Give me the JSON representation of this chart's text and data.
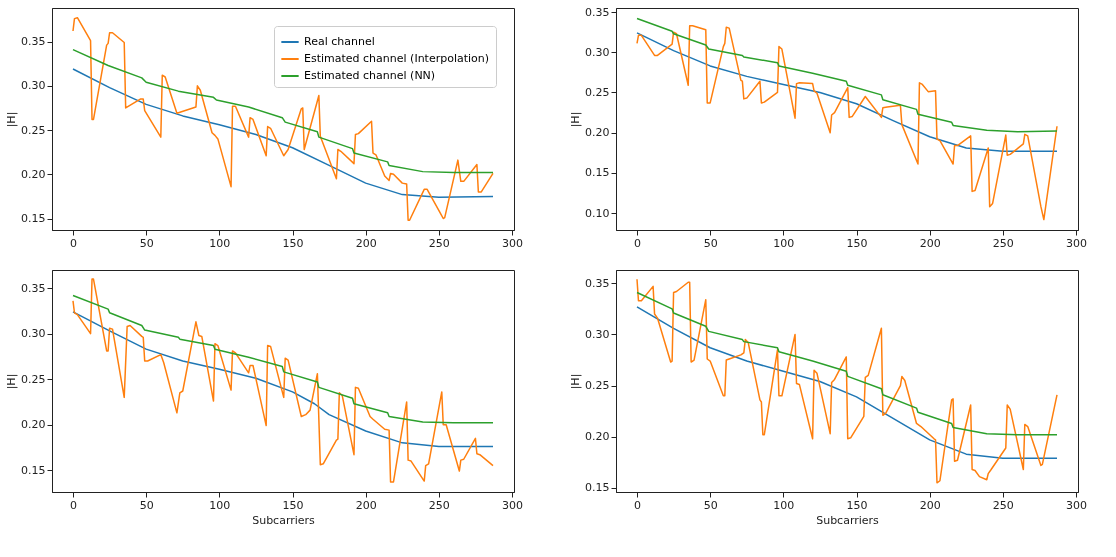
{
  "chart_data": [
    {
      "type": "line",
      "ylabel": "|H|",
      "legend": "top right",
      "grid": false,
      "xlim": [
        -14.35,
        301.35
      ],
      "xticks": [
        0,
        50,
        100,
        150,
        200,
        250,
        300
      ],
      "ylim": [
        0.137,
        0.388
      ],
      "yticks": [
        {
          "value": 0.15,
          "label": "0.15"
        },
        {
          "value": 0.2,
          "label": "0.20"
        },
        {
          "value": 0.25,
          "label": "0.25"
        },
        {
          "value": 0.3,
          "label": "0.30"
        },
        {
          "value": 0.35,
          "label": "0.35"
        }
      ],
      "series": [
        {
          "name": "Real channel",
          "color": "#1f77b4",
          "x": [
            0,
            25,
            50,
            75,
            100,
            125,
            150,
            175,
            200,
            225,
            250,
            287
          ],
          "values": [
            0.319,
            0.298,
            0.279,
            0.266,
            0.256,
            0.245,
            0.23,
            0.21,
            0.19,
            0.177,
            0.174,
            0.175
          ]
        },
        {
          "name": "Estimated channel (Interpolation)",
          "color": "#ff7f0e",
          "x": [
            0,
            1,
            3,
            12,
            13,
            14,
            23,
            24,
            25,
            27,
            35,
            36,
            46,
            48,
            49,
            60,
            61,
            63,
            71,
            84,
            85,
            87,
            95,
            97,
            99,
            108,
            109,
            111,
            120,
            121,
            123,
            132,
            133,
            135,
            144,
            147,
            156,
            157,
            158,
            168,
            169,
            180,
            181,
            183,
            192,
            193,
            195,
            204,
            205,
            207,
            213,
            216,
            217,
            219,
            225,
            228,
            229,
            230,
            240,
            242,
            251,
            253,
            254,
            263,
            265,
            267,
            276,
            277,
            279,
            287
          ],
          "values": [
            0.362,
            0.376,
            0.377,
            0.351,
            0.262,
            0.262,
            0.346,
            0.348,
            0.36,
            0.36,
            0.349,
            0.275,
            0.285,
            0.285,
            0.272,
            0.242,
            0.312,
            0.31,
            0.269,
            0.276,
            0.3,
            0.295,
            0.247,
            0.244,
            0.24,
            0.186,
            0.277,
            0.277,
            0.242,
            0.264,
            0.262,
            0.221,
            0.254,
            0.252,
            0.221,
            0.228,
            0.274,
            0.275,
            0.228,
            0.289,
            0.243,
            0.195,
            0.228,
            0.226,
            0.212,
            0.245,
            0.246,
            0.26,
            0.224,
            0.222,
            0.198,
            0.193,
            0.201,
            0.2,
            0.19,
            0.189,
            0.148,
            0.148,
            0.183,
            0.183,
            0.156,
            0.15,
            0.151,
            0.216,
            0.192,
            0.192,
            0.211,
            0.18,
            0.18,
            0.201
          ]
        },
        {
          "name": "Estimated channel (NN)",
          "color": "#2ca02c",
          "x": [
            0,
            24,
            47,
            50,
            72,
            96,
            98,
            120,
            143,
            145,
            167,
            168,
            191,
            192,
            215,
            216,
            239,
            260,
            287
          ],
          "values": [
            0.341,
            0.323,
            0.309,
            0.304,
            0.294,
            0.287,
            0.284,
            0.276,
            0.264,
            0.259,
            0.248,
            0.242,
            0.229,
            0.224,
            0.214,
            0.21,
            0.203,
            0.202,
            0.202
          ]
        }
      ]
    },
    {
      "type": "line",
      "ylabel": "|H|",
      "legend": false,
      "grid": false,
      "xlim": [
        -14.35,
        301.35
      ],
      "xticks": [
        0,
        50,
        100,
        150,
        200,
        250,
        300
      ],
      "ylim": [
        0.079,
        0.355
      ],
      "yticks": [
        {
          "value": 0.1,
          "label": "0.10"
        },
        {
          "value": 0.15,
          "label": "0.15"
        },
        {
          "value": 0.2,
          "label": "0.20"
        },
        {
          "value": 0.25,
          "label": "0.25"
        },
        {
          "value": 0.3,
          "label": "0.30"
        },
        {
          "value": 0.35,
          "label": "0.35"
        }
      ],
      "series": [
        {
          "color": "#1f77b4",
          "x": [
            0,
            25,
            50,
            75,
            100,
            125,
            150,
            175,
            200,
            225,
            250,
            287
          ],
          "values": [
            0.324,
            0.302,
            0.283,
            0.27,
            0.26,
            0.25,
            0.236,
            0.215,
            0.195,
            0.181,
            0.177,
            0.177
          ]
        },
        {
          "color": "#ff7f0e",
          "x": [
            0,
            1,
            3,
            12,
            14,
            24,
            25,
            27,
            35,
            36,
            38,
            47,
            48,
            50,
            59,
            60,
            61,
            63,
            71,
            72,
            73,
            75,
            84,
            85,
            87,
            96,
            97,
            99,
            108,
            109,
            111,
            120,
            121,
            123,
            132,
            133,
            135,
            144,
            145,
            147,
            156,
            167,
            168,
            171,
            180,
            181,
            192,
            193,
            195,
            199,
            204,
            205,
            207,
            216,
            217,
            219,
            228,
            229,
            231,
            240,
            241,
            243,
            252,
            253,
            255,
            264,
            265,
            267,
            276,
            278,
            287
          ],
          "values": [
            0.311,
            0.321,
            0.321,
            0.296,
            0.296,
            0.31,
            0.325,
            0.323,
            0.259,
            0.333,
            0.333,
            0.328,
            0.237,
            0.237,
            0.307,
            0.311,
            0.331,
            0.33,
            0.265,
            0.264,
            0.242,
            0.243,
            0.264,
            0.237,
            0.238,
            0.25,
            0.307,
            0.304,
            0.218,
            0.261,
            0.262,
            0.261,
            0.252,
            0.249,
            0.2,
            0.222,
            0.225,
            0.256,
            0.219,
            0.22,
            0.245,
            0.219,
            0.231,
            0.232,
            0.234,
            0.21,
            0.161,
            0.262,
            0.26,
            0.251,
            0.252,
            0.192,
            0.19,
            0.161,
            0.184,
            0.184,
            0.196,
            0.127,
            0.128,
            0.181,
            0.108,
            0.112,
            0.197,
            0.172,
            0.173,
            0.186,
            0.198,
            0.196,
            0.108,
            0.092,
            0.208
          ]
        },
        {
          "color": "#2ca02c",
          "x": [
            0,
            24,
            25,
            47,
            49,
            72,
            73,
            96,
            97,
            120,
            143,
            144,
            167,
            168,
            191,
            192,
            215,
            216,
            239,
            260,
            287
          ],
          "values": [
            0.342,
            0.326,
            0.323,
            0.309,
            0.304,
            0.296,
            0.294,
            0.287,
            0.283,
            0.274,
            0.264,
            0.259,
            0.247,
            0.241,
            0.229,
            0.223,
            0.213,
            0.209,
            0.203,
            0.201,
            0.202
          ]
        }
      ]
    },
    {
      "type": "line",
      "xlabel": "Subcarriers",
      "ylabel": "|H|",
      "legend": false,
      "grid": false,
      "xlim": [
        -14.35,
        301.35
      ],
      "xticks": [
        0,
        50,
        100,
        150,
        200,
        250,
        300
      ],
      "ylim": [
        0.126,
        0.37
      ],
      "yticks": [
        {
          "value": 0.15,
          "label": "0.15"
        },
        {
          "value": 0.2,
          "label": "0.20"
        },
        {
          "value": 0.25,
          "label": "0.25"
        },
        {
          "value": 0.3,
          "label": "0.30"
        },
        {
          "value": 0.35,
          "label": "0.35"
        }
      ],
      "series": [
        {
          "color": "#1f77b4",
          "x": [
            0,
            25,
            50,
            75,
            100,
            125,
            150,
            165,
            175,
            200,
            225,
            250,
            287
          ],
          "values": [
            0.324,
            0.303,
            0.283,
            0.27,
            0.261,
            0.251,
            0.236,
            0.223,
            0.211,
            0.193,
            0.18,
            0.176,
            0.176
          ]
        },
        {
          "color": "#ff7f0e",
          "x": [
            0,
            1,
            3,
            12,
            13,
            14,
            23,
            24,
            25,
            27,
            35,
            37,
            39,
            47,
            48,
            49,
            51,
            60,
            62,
            71,
            73,
            75,
            84,
            86,
            88,
            96,
            97,
            99,
            108,
            109,
            111,
            120,
            121,
            123,
            132,
            133,
            135,
            144,
            145,
            147,
            156,
            159,
            162,
            167,
            169,
            171,
            180,
            181,
            182,
            184,
            192,
            193,
            195,
            203,
            205,
            213,
            216,
            217,
            219,
            228,
            229,
            231,
            240,
            241,
            243,
            252,
            253,
            255,
            264,
            265,
            267,
            275,
            276,
            278,
            287
          ],
          "values": [
            0.336,
            0.323,
            0.321,
            0.3,
            0.36,
            0.36,
            0.281,
            0.281,
            0.306,
            0.305,
            0.23,
            0.308,
            0.309,
            0.297,
            0.296,
            0.27,
            0.27,
            0.277,
            0.268,
            0.213,
            0.235,
            0.237,
            0.313,
            0.298,
            0.297,
            0.226,
            0.289,
            0.287,
            0.238,
            0.281,
            0.279,
            0.257,
            0.265,
            0.265,
            0.199,
            0.287,
            0.286,
            0.23,
            0.273,
            0.271,
            0.209,
            0.211,
            0.216,
            0.256,
            0.156,
            0.157,
            0.183,
            0.184,
            0.235,
            0.232,
            0.167,
            0.241,
            0.24,
            0.209,
            0.206,
            0.195,
            0.194,
            0.137,
            0.137,
            0.225,
            0.161,
            0.16,
            0.138,
            0.155,
            0.157,
            0.236,
            0.2,
            0.2,
            0.149,
            0.161,
            0.162,
            0.185,
            0.168,
            0.167,
            0.155
          ]
        },
        {
          "color": "#2ca02c",
          "x": [
            0,
            24,
            25,
            47,
            49,
            72,
            73,
            96,
            97,
            120,
            143,
            144,
            167,
            168,
            191,
            192,
            215,
            216,
            239,
            260,
            287
          ],
          "values": [
            0.342,
            0.327,
            0.323,
            0.309,
            0.304,
            0.296,
            0.294,
            0.287,
            0.283,
            0.274,
            0.264,
            0.258,
            0.247,
            0.241,
            0.229,
            0.223,
            0.213,
            0.209,
            0.203,
            0.202,
            0.202
          ]
        }
      ]
    },
    {
      "type": "line",
      "xlabel": "Subcarriers",
      "ylabel": "|H|",
      "legend": false,
      "grid": false,
      "xlim": [
        -14.35,
        301.35
      ],
      "xticks": [
        0,
        50,
        100,
        150,
        200,
        250,
        300
      ],
      "ylim": [
        0.146,
        0.363
      ],
      "yticks": [
        {
          "value": 0.15,
          "label": "0.15"
        },
        {
          "value": 0.2,
          "label": "0.20"
        },
        {
          "value": 0.25,
          "label": "0.25"
        },
        {
          "value": 0.3,
          "label": "0.30"
        },
        {
          "value": 0.35,
          "label": "0.35"
        }
      ],
      "series": [
        {
          "color": "#1f77b4",
          "x": [
            0,
            25,
            50,
            75,
            100,
            125,
            150,
            175,
            200,
            225,
            250,
            287
          ],
          "values": [
            0.327,
            0.306,
            0.287,
            0.274,
            0.264,
            0.254,
            0.239,
            0.218,
            0.197,
            0.183,
            0.179,
            0.179
          ]
        },
        {
          "color": "#ff7f0e",
          "x": [
            0,
            1,
            3,
            11,
            12,
            14,
            23,
            24,
            25,
            27,
            35,
            36,
            37,
            39,
            47,
            48,
            50,
            59,
            60,
            61,
            63,
            71,
            73,
            74,
            76,
            84,
            85,
            86,
            87,
            96,
            97,
            99,
            108,
            109,
            111,
            120,
            121,
            123,
            132,
            133,
            135,
            143,
            144,
            146,
            155,
            156,
            158,
            167,
            168,
            170,
            180,
            181,
            183,
            191,
            194,
            203,
            204,
            205,
            207,
            215,
            216,
            217,
            219,
            228,
            229,
            231,
            234,
            239,
            240,
            242,
            252,
            253,
            255,
            264,
            265,
            267,
            276,
            277,
            287
          ],
          "values": [
            0.354,
            0.333,
            0.333,
            0.347,
            0.32,
            0.316,
            0.273,
            0.274,
            0.341,
            0.342,
            0.351,
            0.351,
            0.273,
            0.275,
            0.334,
            0.276,
            0.274,
            0.24,
            0.24,
            0.275,
            0.276,
            0.28,
            0.282,
            0.295,
            0.292,
            0.236,
            0.234,
            0.202,
            0.202,
            0.285,
            0.24,
            0.24,
            0.3,
            0.252,
            0.251,
            0.198,
            0.265,
            0.262,
            0.203,
            0.253,
            0.256,
            0.278,
            0.198,
            0.199,
            0.22,
            0.258,
            0.26,
            0.306,
            0.221,
            0.223,
            0.25,
            0.259,
            0.255,
            0.213,
            0.21,
            0.198,
            0.197,
            0.155,
            0.157,
            0.236,
            0.237,
            0.176,
            0.177,
            0.231,
            0.168,
            0.167,
            0.161,
            0.158,
            0.164,
            0.168,
            0.189,
            0.231,
            0.227,
            0.168,
            0.212,
            0.21,
            0.172,
            0.173,
            0.241
          ]
        },
        {
          "color": "#2ca02c",
          "x": [
            0,
            24,
            25,
            47,
            49,
            72,
            73,
            96,
            97,
            120,
            143,
            144,
            167,
            168,
            191,
            192,
            215,
            216,
            239,
            260,
            287
          ],
          "values": [
            0.341,
            0.325,
            0.321,
            0.308,
            0.303,
            0.295,
            0.293,
            0.287,
            0.283,
            0.274,
            0.264,
            0.259,
            0.247,
            0.241,
            0.228,
            0.224,
            0.213,
            0.209,
            0.203,
            0.202,
            0.202
          ]
        }
      ]
    }
  ]
}
